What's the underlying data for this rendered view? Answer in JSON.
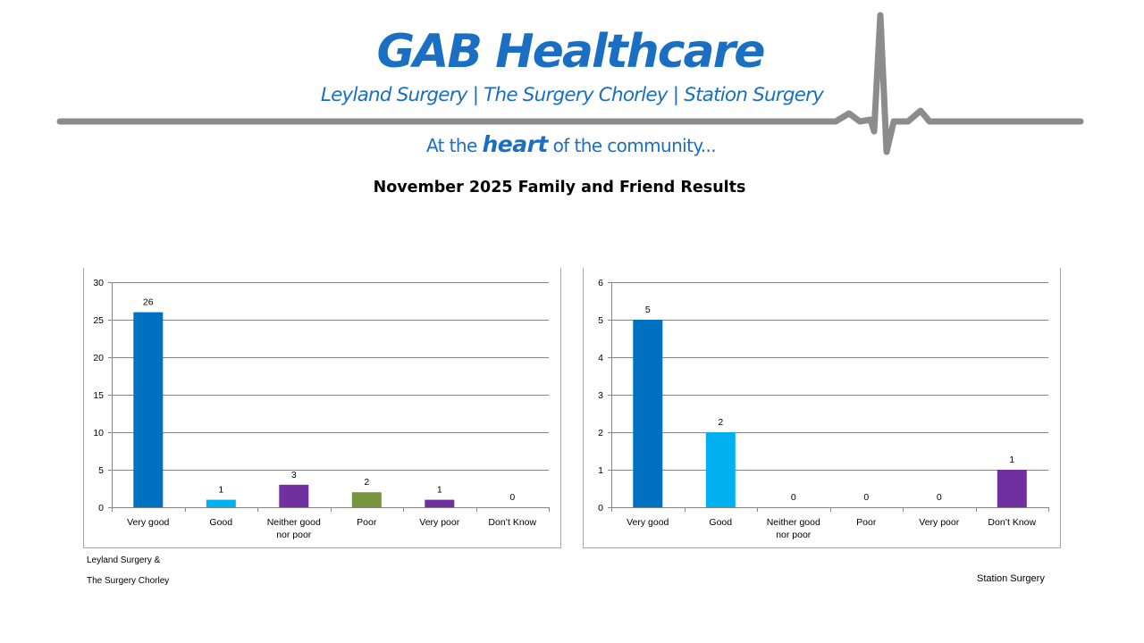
{
  "header": {
    "brand_title": "GAB Healthcare",
    "practices": "Leyland Surgery  |  The Surgery Chorley  |  Station Surgery",
    "tagline_pre": "At the ",
    "tagline_emph": "heart",
    "tagline_post": " of the community..."
  },
  "page_title": "November 2025 Family and Friend Results",
  "captions": {
    "left_line1": "Leyland Surgery &",
    "left_line2": "The Surgery Chorley",
    "right": "Station Surgery"
  },
  "colors": {
    "brand_blue": "#1b6fc2",
    "ecg_gray": "#8c8c8c"
  },
  "chart_data": [
    {
      "type": "bar",
      "title": "",
      "caption": "Leyland Surgery & The Surgery Chorley",
      "categories": [
        "Very good",
        "Good",
        "Neither good nor poor",
        "Poor",
        "Very poor",
        "Don’t Know"
      ],
      "values": [
        26,
        1,
        3,
        2,
        1,
        0
      ],
      "colors": [
        "#0070c0",
        "#00b0f0",
        "#7030a0",
        "#77933c",
        "#7030a0",
        "#7030a0"
      ],
      "ylim": [
        0,
        30
      ],
      "yticks": [
        0,
        5,
        10,
        15,
        20,
        25,
        30
      ],
      "xlabel": "",
      "ylabel": "",
      "grid": true,
      "legend": "none"
    },
    {
      "type": "bar",
      "title": "",
      "caption": "Station Surgery",
      "categories": [
        "Very good",
        "Good",
        "Neither good nor poor",
        "Poor",
        "Very poor",
        "Don’t Know"
      ],
      "values": [
        5,
        2,
        0,
        0,
        0,
        1
      ],
      "colors": [
        "#0070c0",
        "#00b0f0",
        "#7030a0",
        "#77933c",
        "#7030a0",
        "#7030a0"
      ],
      "ylim": [
        0,
        6
      ],
      "yticks": [
        0,
        1,
        2,
        3,
        4,
        5,
        6
      ],
      "xlabel": "",
      "ylabel": "",
      "grid": true,
      "legend": "none"
    }
  ]
}
